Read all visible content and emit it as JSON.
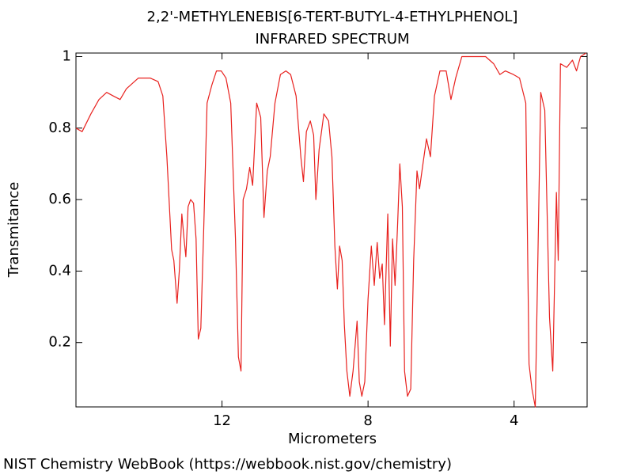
{
  "chart_data": {
    "type": "line",
    "title": "2,2'-METHYLENEBIS[6-TERT-BUTYL-4-ETHYLPHENOL]",
    "subtitle": "INFRARED SPECTRUM",
    "x_label": "Micrometers",
    "y_label": "Transmitance",
    "source": "NIST Chemistry WebBook (https://webbook.nist.gov/chemistry)",
    "color": "#e8211e",
    "xlim": [
      16,
      2
    ],
    "ylim": [
      0.02,
      1.01
    ],
    "xticks": [
      12,
      8,
      4
    ],
    "yticks": [
      0.2,
      0.4,
      0.6,
      0.8,
      1
    ],
    "x": [
      16,
      15.83,
      15.59,
      15.37,
      15.16,
      14.98,
      14.79,
      14.62,
      14.29,
      13.97,
      13.75,
      13.62,
      13.51,
      13.38,
      13.32,
      13.23,
      13.17,
      13.1,
      13.04,
      12.99,
      12.93,
      12.86,
      12.78,
      12.71,
      12.65,
      12.58,
      12.5,
      12.41,
      12.28,
      12.15,
      12.02,
      11.89,
      11.76,
      11.63,
      11.55,
      11.48,
      11.42,
      11.33,
      11.24,
      11.16,
      11.05,
      10.94,
      10.85,
      10.76,
      10.68,
      10.55,
      10.4,
      10.25,
      10.12,
      9.97,
      9.84,
      9.77,
      9.69,
      9.58,
      9.49,
      9.43,
      9.34,
      9.21,
      9.08,
      8.99,
      8.91,
      8.84,
      8.78,
      8.71,
      8.65,
      8.58,
      8.5,
      8.41,
      8.3,
      8.24,
      8.17,
      8.09,
      8,
      7.91,
      7.83,
      7.75,
      7.68,
      7.61,
      7.55,
      7.46,
      7.39,
      7.33,
      7.26,
      7.19,
      7.13,
      7.06,
      7,
      6.92,
      6.83,
      6.75,
      6.66,
      6.59,
      6.51,
      6.4,
      6.29,
      6.18,
      6.03,
      5.86,
      5.73,
      5.6,
      5.43,
      5.1,
      4.78,
      4.56,
      4.39,
      4.24,
      4.02,
      3.85,
      3.68,
      3.59,
      3.51,
      3.42,
      3.34,
      3.27,
      3.16,
      3.03,
      2.94,
      2.84,
      2.79,
      2.73,
      2.56,
      2.4,
      2.29,
      2.18,
      2.03
    ],
    "values": [
      0.8,
      0.79,
      0.84,
      0.88,
      0.9,
      0.89,
      0.88,
      0.91,
      0.94,
      0.94,
      0.93,
      0.89,
      0.72,
      0.46,
      0.43,
      0.31,
      0.4,
      0.56,
      0.49,
      0.44,
      0.58,
      0.6,
      0.59,
      0.49,
      0.21,
      0.24,
      0.52,
      0.87,
      0.92,
      0.96,
      0.96,
      0.94,
      0.87,
      0.49,
      0.16,
      0.12,
      0.6,
      0.63,
      0.69,
      0.64,
      0.87,
      0.83,
      0.55,
      0.68,
      0.72,
      0.87,
      0.95,
      0.96,
      0.95,
      0.89,
      0.72,
      0.65,
      0.79,
      0.82,
      0.78,
      0.6,
      0.74,
      0.84,
      0.82,
      0.72,
      0.47,
      0.35,
      0.47,
      0.43,
      0.25,
      0.12,
      0.05,
      0.12,
      0.26,
      0.09,
      0.05,
      0.09,
      0.32,
      0.47,
      0.36,
      0.48,
      0.38,
      0.42,
      0.25,
      0.56,
      0.19,
      0.49,
      0.36,
      0.53,
      0.7,
      0.58,
      0.12,
      0.05,
      0.07,
      0.43,
      0.68,
      0.63,
      0.69,
      0.77,
      0.72,
      0.89,
      0.96,
      0.96,
      0.88,
      0.94,
      1,
      1,
      1,
      0.98,
      0.95,
      0.96,
      0.95,
      0.94,
      0.87,
      0.14,
      0.07,
      0.02,
      0.49,
      0.9,
      0.85,
      0.27,
      0.12,
      0.62,
      0.43,
      0.98,
      0.97,
      0.99,
      0.96,
      1,
      1.01
    ]
  }
}
